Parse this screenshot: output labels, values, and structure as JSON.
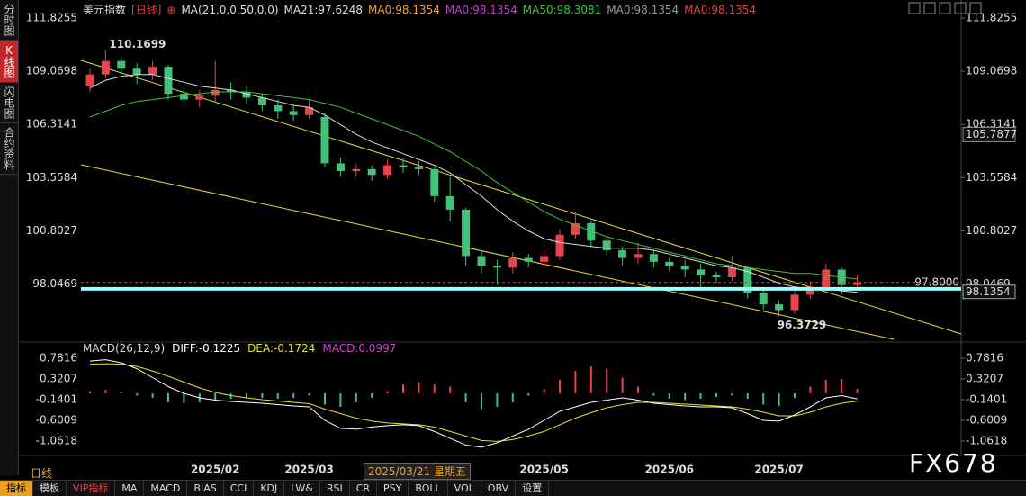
{
  "sidebar": [
    "分时图",
    "K线图",
    "闪电图",
    "合约资料"
  ],
  "header": {
    "title": "美元指数",
    "period": "[日线]",
    "legend": [
      {
        "text": "MA(21,0,0,50,0,0)",
        "color": "#dddddd"
      },
      {
        "text": "MA21:97.6248",
        "color": "#dddddd"
      },
      {
        "text": "MA0:98.1354",
        "color": "#f0a030"
      },
      {
        "text": "MA0:98.1354",
        "color": "#c040d0"
      },
      {
        "text": "MA50:98.3081",
        "color": "#40c040"
      },
      {
        "text": "MA0:98.1354",
        "color": "#999999"
      },
      {
        "text": "MA0:98.1354",
        "color": "#e04040"
      }
    ]
  },
  "chart_data": [
    {
      "type": "candlestick",
      "categories": [
        null,
        null,
        null,
        null,
        null,
        null,
        null,
        null,
        "2025/02",
        null,
        null,
        null,
        null,
        null,
        "2025/03",
        null,
        null,
        null,
        null,
        null,
        null,
        null,
        null,
        null,
        null,
        null,
        null,
        null,
        null,
        "2025/05",
        null,
        null,
        null,
        null,
        null,
        null,
        null,
        "2025/06",
        null,
        null,
        null,
        null,
        null,
        null,
        "2025/07",
        null,
        null,
        null,
        null,
        null
      ],
      "open": [
        108.3,
        108.9,
        109.6,
        109.2,
        108.9,
        109.3,
        107.9,
        107.6,
        107.8,
        108.1,
        108.0,
        107.7,
        107.3,
        107.0,
        106.8,
        106.7,
        104.3,
        103.9,
        104.0,
        103.7,
        104.2,
        104.1,
        104.0,
        102.6,
        101.9,
        99.5,
        99.0,
        98.9,
        99.4,
        99.2,
        99.5,
        100.6,
        101.2,
        100.3,
        99.8,
        99.4,
        99.6,
        99.2,
        99.0,
        98.8,
        98.5,
        98.4,
        98.9,
        97.6,
        97.0,
        96.7,
        97.5,
        97.9,
        98.8,
        98.0
      ],
      "high": [
        109.2,
        110.1699,
        109.8,
        109.5,
        109.6,
        109.4,
        108.2,
        108.1,
        109.6,
        108.5,
        108.3,
        107.9,
        107.6,
        107.3,
        107.6,
        106.9,
        104.6,
        104.3,
        104.2,
        104.5,
        104.6,
        104.4,
        104.1,
        103.6,
        102.0,
        99.8,
        99.3,
        99.7,
        99.6,
        99.8,
        100.9,
        101.8,
        101.3,
        100.5,
        100.0,
        100.2,
        99.8,
        99.4,
        99.3,
        99.1,
        98.7,
        99.5,
        99.0,
        97.8,
        97.2,
        97.7,
        98.2,
        99.1,
        98.9,
        98.5
      ],
      "low": [
        108.0,
        108.7,
        108.9,
        108.4,
        108.6,
        107.6,
        107.3,
        107.2,
        107.5,
        107.6,
        107.4,
        107.0,
        106.6,
        106.5,
        106.6,
        104.1,
        103.6,
        103.6,
        103.4,
        103.5,
        103.8,
        103.7,
        102.3,
        101.3,
        99.0,
        98.6,
        98.0,
        98.6,
        98.9,
        98.9,
        99.3,
        100.4,
        100.0,
        99.5,
        99.0,
        99.1,
        98.9,
        98.7,
        98.4,
        97.9,
        98.1,
        98.2,
        97.3,
        96.7,
        96.3729,
        96.5,
        97.3,
        97.7,
        97.5,
        97.7
      ],
      "close": [
        108.9,
        109.6,
        109.2,
        108.9,
        109.3,
        107.9,
        107.6,
        107.8,
        108.1,
        108.0,
        107.7,
        107.3,
        107.0,
        106.8,
        107.2,
        104.3,
        103.9,
        104.0,
        103.7,
        104.2,
        104.1,
        104.0,
        102.6,
        101.9,
        99.5,
        99.0,
        98.9,
        99.4,
        99.2,
        99.5,
        100.6,
        101.2,
        100.3,
        99.8,
        99.4,
        99.6,
        99.2,
        99.0,
        98.8,
        98.5,
        98.4,
        98.9,
        97.6,
        97.0,
        96.7,
        97.5,
        97.9,
        98.8,
        98.0,
        98.1354
      ],
      "up_color": "#e8454a",
      "down_color": "#45c07a",
      "lines": [
        {
          "color": "#dddddd",
          "values": [
            108.2,
            108.6,
            108.8,
            108.9,
            108.9,
            108.7,
            108.5,
            108.3,
            108.2,
            108.1,
            107.9,
            107.7,
            107.5,
            107.3,
            107.2,
            106.8,
            106.3,
            105.8,
            105.4,
            105.1,
            104.8,
            104.5,
            104.2,
            103.8,
            103.2,
            102.6,
            101.9,
            101.3,
            100.8,
            100.4,
            100.2,
            100.1,
            100.0,
            99.9,
            99.9,
            99.9,
            99.8,
            99.6,
            99.4,
            99.2,
            99.0,
            98.9,
            98.7,
            98.4,
            98.1,
            97.9,
            97.8,
            97.8,
            97.7,
            97.6248
          ]
        },
        {
          "color": "#40c040",
          "values": [
            106.7,
            107.0,
            107.3,
            107.5,
            107.6,
            107.7,
            107.8,
            107.9,
            108.0,
            108.0,
            108.0,
            107.9,
            107.8,
            107.7,
            107.6,
            107.4,
            107.2,
            106.9,
            106.6,
            106.3,
            106.0,
            105.7,
            105.3,
            104.9,
            104.4,
            103.9,
            103.3,
            102.8,
            102.3,
            101.8,
            101.4,
            101.1,
            100.8,
            100.5,
            100.3,
            100.1,
            99.9,
            99.7,
            99.5,
            99.3,
            99.1,
            99.0,
            98.9,
            98.8,
            98.7,
            98.6,
            98.6,
            98.5,
            98.4,
            98.3081
          ]
        }
      ],
      "ylim": [
        95.14,
        112.38
      ],
      "yticks": [
        111.8255,
        109.0698,
        106.3141,
        103.5584,
        100.8027,
        98.0469
      ],
      "max_label": 110.1699,
      "min_label": 96.3729,
      "cursor_price": 105.7877,
      "level": {
        "value": 97.8,
        "label": "97.8000"
      },
      "last_price": 98.1354
    },
    {
      "type": "macd",
      "legend": [
        {
          "text": "MACD(26,12,9)",
          "color": "#dddddd"
        },
        {
          "text": "DIFF:-0.1225",
          "color": "#ffffff"
        },
        {
          "text": "DEA:-0.1724",
          "color": "#e8e030"
        },
        {
          "text": "MACD:0.0997",
          "color": "#d040d0"
        }
      ],
      "hist": [
        0.05,
        0.08,
        0.04,
        -0.05,
        -0.1,
        -0.2,
        -0.22,
        -0.2,
        -0.15,
        -0.12,
        -0.1,
        -0.1,
        -0.12,
        -0.1,
        -0.05,
        -0.25,
        -0.3,
        -0.2,
        -0.1,
        0.05,
        0.2,
        0.25,
        0.2,
        0.15,
        -0.2,
        -0.35,
        -0.3,
        -0.2,
        -0.05,
        0.1,
        0.3,
        0.5,
        0.6,
        0.55,
        0.35,
        0.15,
        -0.05,
        -0.12,
        -0.15,
        -0.12,
        -0.08,
        -0.05,
        -0.12,
        -0.25,
        -0.28,
        -0.1,
        0.15,
        0.3,
        0.32,
        0.0997
      ],
      "diff": [
        0.72,
        0.75,
        0.68,
        0.55,
        0.35,
        0.15,
        0.0,
        -0.1,
        -0.15,
        -0.18,
        -0.2,
        -0.22,
        -0.25,
        -0.28,
        -0.3,
        -0.6,
        -0.78,
        -0.8,
        -0.75,
        -0.72,
        -0.7,
        -0.72,
        -0.85,
        -1.0,
        -1.15,
        -1.2,
        -1.1,
        -0.95,
        -0.8,
        -0.6,
        -0.4,
        -0.3,
        -0.2,
        -0.15,
        -0.1,
        -0.15,
        -0.22,
        -0.25,
        -0.28,
        -0.3,
        -0.3,
        -0.32,
        -0.45,
        -0.6,
        -0.62,
        -0.48,
        -0.3,
        -0.1,
        -0.05,
        -0.1225
      ],
      "dea": [
        0.65,
        0.66,
        0.65,
        0.6,
        0.5,
        0.38,
        0.25,
        0.12,
        0.02,
        -0.05,
        -0.1,
        -0.14,
        -0.17,
        -0.2,
        -0.23,
        -0.35,
        -0.45,
        -0.55,
        -0.62,
        -0.66,
        -0.68,
        -0.7,
        -0.75,
        -0.85,
        -0.95,
        -1.05,
        -1.07,
        -1.03,
        -0.95,
        -0.85,
        -0.7,
        -0.55,
        -0.43,
        -0.32,
        -0.25,
        -0.2,
        -0.2,
        -0.22,
        -0.24,
        -0.26,
        -0.28,
        -0.3,
        -0.35,
        -0.42,
        -0.5,
        -0.5,
        -0.42,
        -0.3,
        -0.22,
        -0.1724
      ],
      "diff_color": "#ffffff",
      "dea_color": "#e8e030",
      "up_color": "#e8454a",
      "down_color": "#45c07a",
      "ylim": [
        -1.2622,
        0.9419
      ],
      "yticks": [
        0.7816,
        0.3207,
        -0.1401,
        -0.6009,
        -1.0618
      ]
    }
  ],
  "cursor_date": "2025/03/21 星期五",
  "period_label": "日线",
  "toolbar": [
    "指标",
    "模板",
    "VIP指标",
    "MA",
    "MACD",
    "BIAS",
    "CCI",
    "KDJ",
    "LW&",
    "RSI",
    "CR",
    "PSY",
    "BOLL",
    "VOL",
    "OBV",
    "设置"
  ],
  "watermark": "FX678"
}
